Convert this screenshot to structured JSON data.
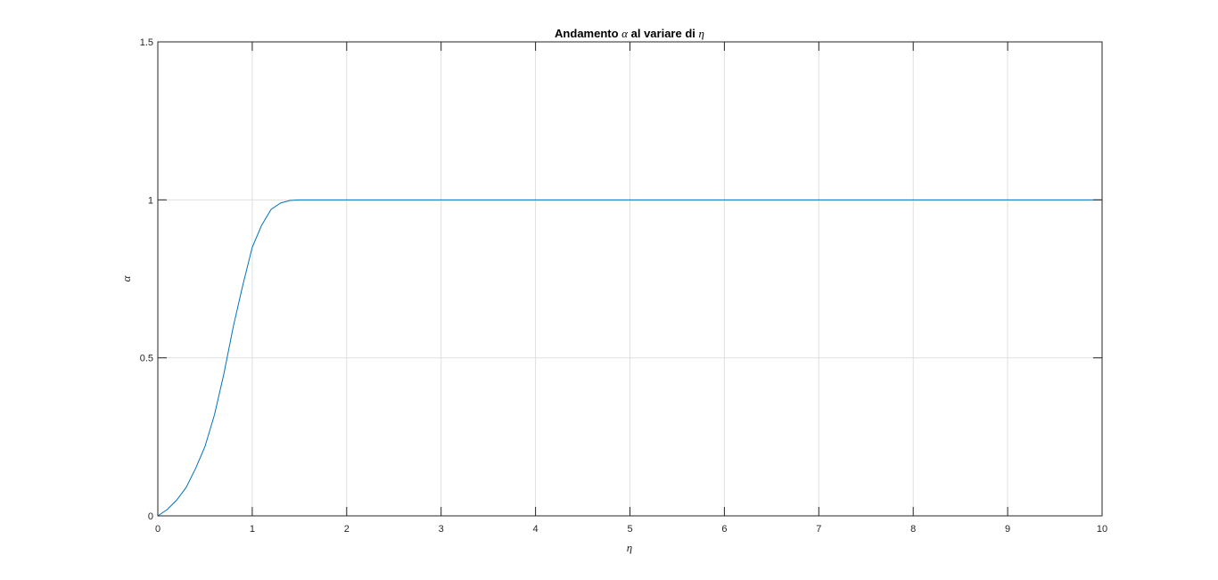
{
  "chart_data": {
    "type": "line",
    "title": {
      "prefix": "Andamento ",
      "symbol1": "α",
      "middle": " al variare di ",
      "symbol2": "η"
    },
    "xlabel": "η",
    "ylabel": "α",
    "xlim": [
      0,
      10
    ],
    "ylim": [
      0,
      1.5
    ],
    "xticks": [
      0,
      1,
      2,
      3,
      4,
      5,
      6,
      7,
      8,
      9,
      10
    ],
    "xtick_labels": [
      "0",
      "1",
      "2",
      "3",
      "4",
      "5",
      "6",
      "7",
      "8",
      "9",
      "10"
    ],
    "yticks": [
      0,
      0.5,
      1,
      1.5
    ],
    "ytick_labels": [
      "0",
      "0.5",
      "1",
      "1.5"
    ],
    "grid": true,
    "line_color": "#0072BD",
    "series": [
      {
        "x": [
          0,
          0.1,
          0.2,
          0.3,
          0.4,
          0.5,
          0.6,
          0.7,
          0.8,
          0.9,
          1.0,
          1.1,
          1.2,
          1.3,
          1.4,
          1.5,
          2,
          3,
          4,
          5,
          6,
          7,
          8,
          9,
          10
        ],
        "y": [
          0,
          0.02,
          0.05,
          0.09,
          0.15,
          0.22,
          0.32,
          0.45,
          0.6,
          0.73,
          0.85,
          0.92,
          0.97,
          0.99,
          0.998,
          1.0,
          1.0,
          1.0,
          1.0,
          1.0,
          1.0,
          1.0,
          1.0,
          1.0,
          1.0
        ]
      }
    ]
  }
}
